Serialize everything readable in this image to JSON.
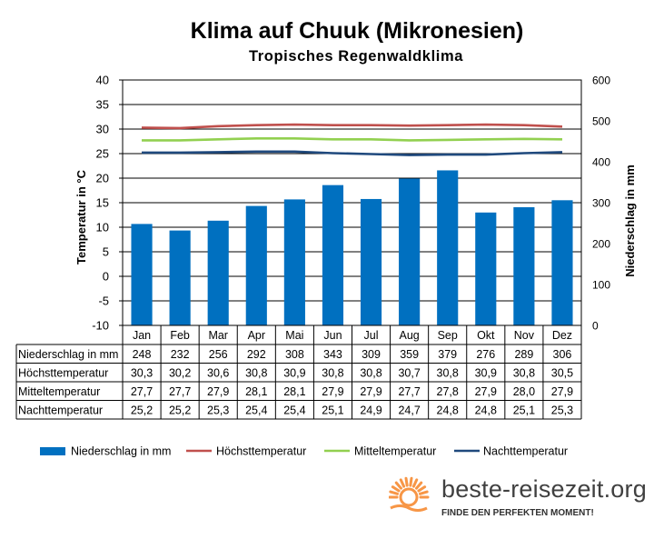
{
  "title": "Klima auf Chuuk (Mikronesien)",
  "subtitle": "Tropisches Regenwaldklima",
  "brand": {
    "name": "beste-reisezeit.org",
    "slogan": "FINDE DEN PERFEKTEN MOMENT!"
  },
  "colors": {
    "bars": "#0070C0",
    "hoechst": "#C0504D",
    "mittel": "#92D050",
    "nacht": "#1F497D",
    "logo_sun": "#F79646"
  },
  "chart_data": {
    "type": "bar",
    "categories": [
      "Jan",
      "Feb",
      "Mar",
      "Apr",
      "Mai",
      "Jun",
      "Jul",
      "Aug",
      "Sep",
      "Okt",
      "Nov",
      "Dez"
    ],
    "ylabel": "Temperatur in °C",
    "y2label": "Niederschlag in mm",
    "ylim": [
      -10,
      40
    ],
    "yticks": [
      "40",
      "35",
      "30",
      "25",
      "20",
      "15",
      "10",
      "5",
      "0",
      "-5",
      "-10"
    ],
    "y2lim": [
      0,
      600
    ],
    "y2ticks": [
      "600",
      "500",
      "400",
      "300",
      "200",
      "100",
      "0"
    ],
    "grid": true,
    "legend_position": "bottom",
    "series": [
      {
        "name": "Niederschlag in mm",
        "type": "bar",
        "axis": "right",
        "values": [
          248,
          232,
          256,
          292,
          308,
          343,
          309,
          359,
          379,
          276,
          289,
          306
        ],
        "labels": [
          "248",
          "232",
          "256",
          "292",
          "308",
          "343",
          "309",
          "359",
          "379",
          "276",
          "289",
          "306"
        ]
      },
      {
        "name": "Höchsttemperatur",
        "type": "line",
        "axis": "left",
        "values": [
          30.3,
          30.2,
          30.6,
          30.8,
          30.9,
          30.8,
          30.8,
          30.7,
          30.8,
          30.9,
          30.8,
          30.5
        ],
        "labels": [
          "30,3",
          "30,2",
          "30,6",
          "30,8",
          "30,9",
          "30,8",
          "30,8",
          "30,7",
          "30,8",
          "30,9",
          "30,8",
          "30,5"
        ]
      },
      {
        "name": "Mitteltemperatur",
        "type": "line",
        "axis": "left",
        "values": [
          27.7,
          27.7,
          27.9,
          28.1,
          28.1,
          27.9,
          27.9,
          27.7,
          27.8,
          27.9,
          28.0,
          27.9
        ],
        "labels": [
          "27,7",
          "27,7",
          "27,9",
          "28,1",
          "28,1",
          "27,9",
          "27,9",
          "27,7",
          "27,8",
          "27,9",
          "28,0",
          "27,9"
        ]
      },
      {
        "name": "Nachttemperatur",
        "type": "line",
        "axis": "left",
        "values": [
          25.2,
          25.2,
          25.3,
          25.4,
          25.4,
          25.1,
          24.9,
          24.7,
          24.8,
          24.8,
          25.1,
          25.3
        ],
        "labels": [
          "25,2",
          "25,2",
          "25,3",
          "25,4",
          "25,4",
          "25,1",
          "24,9",
          "24,7",
          "24,8",
          "24,8",
          "25,1",
          "25,3"
        ]
      }
    ]
  }
}
